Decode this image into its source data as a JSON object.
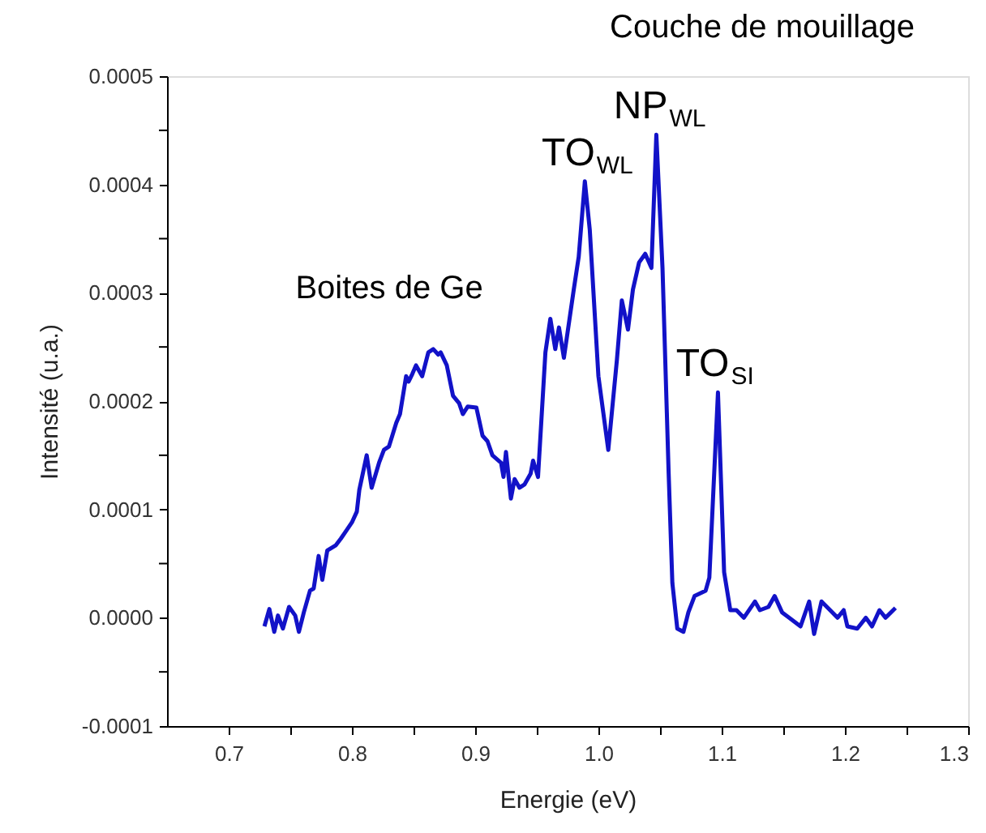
{
  "chart_data": {
    "type": "line",
    "xlabel": "Energie (eV)",
    "ylabel": "Intensité (u.a.)",
    "annotations": [
      "Couche de mouillage",
      "Boites de Ge",
      {
        "text": "TO$_{WL}$",
        "x": 0.988,
        "y": 0.000403
      },
      {
        "text": "NP$_{WL}$",
        "x": 1.047,
        "y": 0.000446
      },
      {
        "text": "TO$_{SI}$",
        "x": 1.097,
        "y": 0.000208
      }
    ],
    "xlim": [
      0.65,
      1.3
    ],
    "xticks": [
      0.7,
      {
        "value": 0.75,
        "label": null
      },
      0.8,
      {
        "value": 0.85,
        "label": null
      },
      0.9,
      {
        "value": 0.95,
        "label": null
      },
      {
        "value": 1.0,
        "label": "1.0"
      },
      {
        "value": 1.05,
        "label": null
      },
      1.1,
      {
        "value": 1.15,
        "label": null
      },
      1.2,
      {
        "value": 1.25,
        "label": null
      },
      1.3
    ],
    "ylim": [
      -0.0001,
      0.0005
    ],
    "yticks": [
      {
        "value": -0.0001,
        "label": "-0.0001"
      },
      {
        "value": -5e-05,
        "label": null
      },
      {
        "value": 0,
        "label": "0.0000"
      },
      {
        "value": 5e-05,
        "label": null
      },
      {
        "value": 0.0001,
        "label": "0.0001"
      },
      {
        "value": 0.00015,
        "label": null
      },
      {
        "value": 0.0002,
        "label": "0.0002"
      },
      {
        "value": 0.00025,
        "label": null
      },
      {
        "value": 0.0003,
        "label": "0.0003"
      },
      {
        "value": 0.00035,
        "label": null
      },
      {
        "value": 0.0004,
        "label": "0.0004"
      },
      {
        "value": 0.00045,
        "label": null
      },
      {
        "value": 0.0005,
        "label": "0.0005"
      }
    ],
    "grid": false,
    "marker": "none",
    "line_style": "solid",
    "series": [
      {
        "color": "#1212c8",
        "x": [
          0.729,
          0.733,
          0.737,
          0.74,
          0.744,
          0.749,
          0.754,
          0.757,
          0.761,
          0.766,
          0.769,
          0.773,
          0.776,
          0.78,
          0.787,
          0.791,
          0.794,
          0.8,
          0.804,
          0.806,
          0.812,
          0.816,
          0.822,
          0.826,
          0.83,
          0.836,
          0.839,
          0.844,
          0.846,
          0.849,
          0.852,
          0.857,
          0.862,
          0.866,
          0.87,
          0.872,
          0.877,
          0.882,
          0.887,
          0.89,
          0.894,
          0.901,
          0.906,
          0.91,
          0.914,
          0.921,
          0.923,
          0.925,
          0.929,
          0.932,
          0.936,
          0.94,
          0.945,
          0.947,
          0.951,
          0.957,
          0.961,
          0.965,
          0.968,
          0.972,
          0.98,
          0.984,
          0.989,
          0.993,
          1.0,
          1.008,
          1.015,
          1.019,
          1.024,
          1.028,
          1.033,
          1.038,
          1.043,
          1.047,
          1.052,
          1.057,
          1.06,
          1.064,
          1.069,
          1.073,
          1.078,
          1.087,
          1.09,
          1.097,
          1.102,
          1.107,
          1.112,
          1.118,
          1.127,
          1.131,
          1.138,
          1.143,
          1.149,
          1.164,
          1.171,
          1.175,
          1.181,
          1.188,
          1.194,
          1.199,
          1.202,
          1.21,
          1.217,
          1.222,
          1.228,
          1.233,
          1.241
        ],
        "values": [
          -8e-06,
          8e-06,
          -1.3e-05,
          2e-06,
          -1e-05,
          1e-05,
          2e-06,
          -1.3e-05,
          5e-06,
          2.5e-05,
          2.7e-05,
          5.7e-05,
          3.5e-05,
          6.2e-05,
          6.7e-05,
          7.3e-05,
          7.8e-05,
          8.8e-05,
          9.8e-05,
          0.000118,
          0.00015,
          0.00012,
          0.000143,
          0.000155,
          0.000158,
          0.00018,
          0.000188,
          0.000223,
          0.000218,
          0.000225,
          0.000233,
          0.000223,
          0.000245,
          0.000248,
          0.000243,
          0.000245,
          0.000233,
          0.000205,
          0.000198,
          0.000188,
          0.000195,
          0.000194,
          0.000168,
          0.000163,
          0.00015,
          0.000143,
          0.00013,
          0.000153,
          0.00011,
          0.000128,
          0.00012,
          0.000123,
          0.000133,
          0.000145,
          0.00013,
          0.000245,
          0.000276,
          0.000248,
          0.000268,
          0.00024,
          0.000303,
          0.000333,
          0.000403,
          0.000358,
          0.000223,
          0.000155,
          0.000238,
          0.000293,
          0.000266,
          0.000303,
          0.000328,
          0.000336,
          0.000323,
          0.000446,
          0.000323,
          0.000133,
          3.2e-05,
          -1e-05,
          -1.3e-05,
          5e-06,
          2e-05,
          2.5e-05,
          3.7e-05,
          0.000208,
          4.2e-05,
          7e-06,
          7e-06,
          0.0,
          1.5e-05,
          7e-06,
          1e-05,
          2e-05,
          5e-06,
          -8e-06,
          1.5e-05,
          -1.5e-05,
          1.5e-05,
          7e-06,
          0.0,
          7e-06,
          -8e-06,
          -1e-05,
          0.0,
          -8e-06,
          7e-06,
          0.0,
          9e-06
        ]
      }
    ]
  }
}
